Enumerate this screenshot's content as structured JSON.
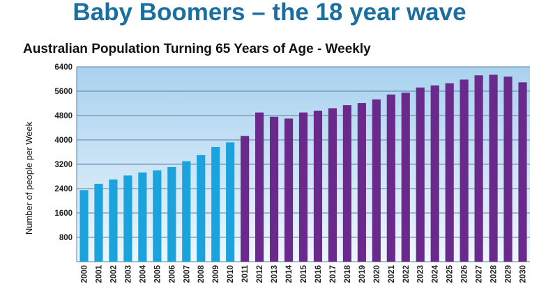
{
  "headline": "Baby Boomers – the 18 year wave",
  "chart_data": {
    "type": "bar",
    "title": "Australian Population Turning 65 Years of Age - Weekly",
    "xlabel": "",
    "ylabel": "Number of people per Week",
    "ylim": [
      0,
      6400
    ],
    "yticks": [
      800,
      1600,
      2400,
      3200,
      4000,
      4800,
      5600,
      6400
    ],
    "grid": true,
    "legend": "none",
    "colors": {
      "historical": "#1aa3dc",
      "projected": "#6a2a8c",
      "plot_bg_top": "#a9d2ef",
      "plot_bg_bottom": "#eef6fc"
    },
    "categories": [
      "2000",
      "2001",
      "2002",
      "2003",
      "2004",
      "2005",
      "2006",
      "2007",
      "2008",
      "2009",
      "2010",
      "2011",
      "2012",
      "2013",
      "2014",
      "2015",
      "2016",
      "2017",
      "2018",
      "2019",
      "2020",
      "2021",
      "2022",
      "2023",
      "2024",
      "2025",
      "2026",
      "2027",
      "2028",
      "2029",
      "2030"
    ],
    "values": [
      2350,
      2560,
      2700,
      2830,
      2930,
      3000,
      3110,
      3300,
      3500,
      3770,
      3920,
      4130,
      4900,
      4760,
      4700,
      4900,
      4960,
      5040,
      5140,
      5210,
      5330,
      5490,
      5550,
      5720,
      5790,
      5860,
      5980,
      6120,
      6140,
      6080,
      5890
    ],
    "color_groups": [
      "historical",
      "historical",
      "historical",
      "historical",
      "historical",
      "historical",
      "historical",
      "historical",
      "historical",
      "historical",
      "historical",
      "projected",
      "projected",
      "projected",
      "projected",
      "projected",
      "projected",
      "projected",
      "projected",
      "projected",
      "projected",
      "projected",
      "projected",
      "projected",
      "projected",
      "projected",
      "projected",
      "projected",
      "projected",
      "projected",
      "projected"
    ]
  }
}
